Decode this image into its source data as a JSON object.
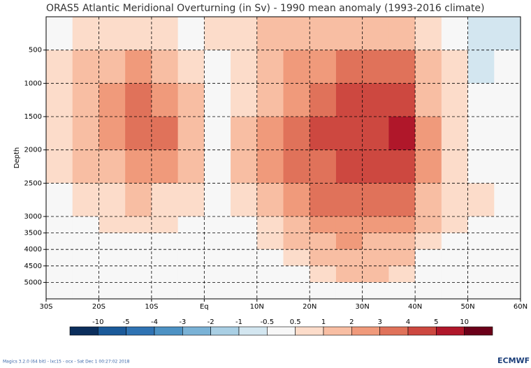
{
  "chart_data": {
    "type": "contour",
    "title": "ORAS5 Atlantic Meridional Overturning (in Sv) - 1990 mean anomaly (1993-2016 climate)",
    "y_label": "Depth",
    "xlim": [
      -30,
      60
    ],
    "xticks": [
      {
        "value": -30,
        "label": "30S"
      },
      {
        "value": -20,
        "label": "20S"
      },
      {
        "value": -10,
        "label": "10S"
      },
      {
        "value": 0,
        "label": "Eq"
      },
      {
        "value": 10,
        "label": "10N"
      },
      {
        "value": 20,
        "label": "20N"
      },
      {
        "value": 30,
        "label": "30N"
      },
      {
        "value": 40,
        "label": "40N"
      },
      {
        "value": 50,
        "label": "50N"
      },
      {
        "value": 60,
        "label": "60N"
      }
    ],
    "ylim": [
      5500,
      0
    ],
    "yticks": [
      500,
      1000,
      1500,
      2000,
      2500,
      3000,
      3500,
      4000,
      4500,
      5000
    ],
    "grid": true,
    "x": [
      -27.5,
      -22.5,
      -17.5,
      -12.5,
      -7.5,
      -2.5,
      2.5,
      7.5,
      12.5,
      17.5,
      22.5,
      27.5,
      32.5,
      37.5,
      42.5,
      47.5,
      52.5,
      57.5
    ],
    "y": [
      250,
      750,
      1250,
      1750,
      2250,
      2750,
      3250,
      3750,
      4250,
      4750,
      5250
    ],
    "z": [
      [
        0.3,
        0.7,
        0.7,
        0.7,
        0.7,
        0.3,
        0.7,
        0.7,
        1.2,
        1.5,
        1.5,
        1.5,
        1.5,
        1.5,
        0.7,
        0.3,
        -0.7,
        -0.7
      ],
      [
        0.7,
        1.5,
        1.5,
        2.5,
        1.5,
        0.7,
        0.3,
        0.7,
        1.5,
        2.5,
        2.5,
        3.5,
        3.5,
        3.5,
        1.5,
        0.7,
        -0.7,
        -0.3
      ],
      [
        0.7,
        1.5,
        2.5,
        3.5,
        2.5,
        1.5,
        0.3,
        0.7,
        1.5,
        2.5,
        3.5,
        4.5,
        4.5,
        4.5,
        1.5,
        0.7,
        0.3,
        0
      ],
      [
        0.7,
        1.5,
        2.5,
        3.5,
        3.5,
        1.5,
        0.3,
        1.5,
        2.5,
        3.5,
        4.5,
        4.5,
        4.5,
        7,
        2.5,
        0.7,
        0.3,
        0
      ],
      [
        0.7,
        1.5,
        1.5,
        2.5,
        2.5,
        1.5,
        0.3,
        1.5,
        2.5,
        3.5,
        3.5,
        4.5,
        4.5,
        4.5,
        2.5,
        0.7,
        0.3,
        0.3
      ],
      [
        0.3,
        0.7,
        0.7,
        1.5,
        0.7,
        0.7,
        0,
        0.7,
        1.5,
        2.5,
        3.5,
        3.5,
        3.5,
        3.5,
        1.5,
        0.7,
        0.7,
        0.3
      ],
      [
        0.3,
        0.3,
        0.7,
        0.7,
        0.7,
        0.3,
        0,
        0.3,
        0.7,
        1.5,
        2.5,
        2.5,
        2.5,
        2.5,
        1.5,
        0.7,
        0.3,
        0.3
      ],
      [
        0,
        0.3,
        0.3,
        0.3,
        0.3,
        0.3,
        0,
        0,
        0.7,
        1.5,
        1.5,
        2.5,
        1.5,
        1.5,
        0.7,
        0.3,
        0.3,
        0
      ],
      [
        0,
        0,
        0,
        0,
        0,
        0,
        0,
        0,
        0.3,
        0.7,
        1.5,
        1.5,
        1.5,
        1.5,
        0.3,
        0,
        0,
        0
      ],
      [
        0,
        0,
        0,
        0,
        0,
        0,
        0,
        0,
        0,
        0.3,
        0.7,
        1.5,
        1.5,
        0.7,
        0,
        0,
        0,
        0
      ],
      [
        0,
        0,
        0,
        0,
        0,
        0,
        0,
        0,
        0,
        0,
        0.3,
        0.3,
        0.3,
        0,
        0,
        0,
        0,
        0
      ]
    ],
    "colorbar": {
      "levels": [
        -10,
        -5,
        -4,
        -3,
        -2,
        -1,
        -0.5,
        0.5,
        1,
        2,
        3,
        4,
        5,
        10
      ],
      "colors": [
        "#0b2e5c",
        "#1b5a9a",
        "#2f73b3",
        "#4d92c4",
        "#7ab2d6",
        "#a9cfe4",
        "#d3e6f0",
        "#f7f7f7",
        "#fcdcca",
        "#f8bea3",
        "#f09a7b",
        "#e0725a",
        "#cd4840",
        "#b0172a",
        "#6b0019"
      ]
    },
    "footer": "Magics 3.2.0 (64 bit) - lxc15 - ocx - Sat Dec  1 00:27:02 2018",
    "logo": "ECMWF"
  }
}
